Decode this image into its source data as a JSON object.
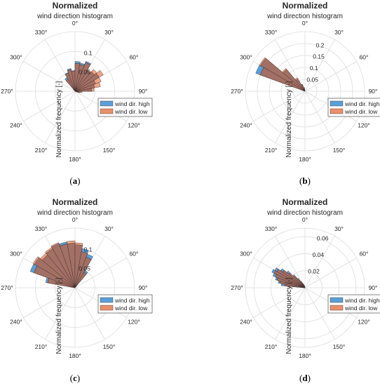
{
  "colors": {
    "high": "#5a9fd8",
    "low": "#e8906a",
    "overlap": "#a37065",
    "grid": "#dcdcdc",
    "edge": "#3a2a2a"
  },
  "legend": {
    "high": "wind dir. high",
    "low": "wind  dir. low"
  },
  "chart_data": [
    {
      "panel": "a",
      "type": "polar_histogram",
      "title": "Normalized",
      "subtitle": "wind direction histogram",
      "ylabel": "Normalized frequency [-]",
      "rlim": [
        0,
        0.15
      ],
      "rticks": [
        {
          "v": 0.05,
          "label": "0.05"
        },
        {
          "v": 0.1,
          "label": "0.1"
        }
      ],
      "angle_ticks": [
        "0°",
        "30°",
        "60°",
        "90°",
        "120°",
        "150°",
        "180°",
        "210°",
        "240°",
        "270°",
        "300°",
        "330°"
      ],
      "legend_position": "lower-right",
      "bin_width_deg": 10,
      "series": [
        {
          "name": "wind dir. high",
          "bins": [
            {
              "a": -35,
              "v": 0.04
            },
            {
              "a": -25,
              "v": 0.05
            },
            {
              "a": -15,
              "v": 0.058
            },
            {
              "a": -5,
              "v": 0.052
            },
            {
              "a": 5,
              "v": 0.075
            },
            {
              "a": 15,
              "v": 0.072
            },
            {
              "a": 25,
              "v": 0.08
            },
            {
              "a": 35,
              "v": 0.06
            },
            {
              "a": 45,
              "v": 0.064
            },
            {
              "a": 55,
              "v": 0.07
            },
            {
              "a": 65,
              "v": 0.055
            },
            {
              "a": 75,
              "v": 0.05
            },
            {
              "a": 85,
              "v": 0.042
            },
            {
              "a": 95,
              "v": 0.015
            },
            {
              "a": 105,
              "v": 0.01
            }
          ]
        },
        {
          "name": "wind  dir. low",
          "bins": [
            {
              "a": -35,
              "v": 0.035
            },
            {
              "a": -25,
              "v": 0.048
            },
            {
              "a": -15,
              "v": 0.055
            },
            {
              "a": -5,
              "v": 0.05
            },
            {
              "a": 5,
              "v": 0.07
            },
            {
              "a": 15,
              "v": 0.068
            },
            {
              "a": 25,
              "v": 0.077
            },
            {
              "a": 35,
              "v": 0.063
            },
            {
              "a": 45,
              "v": 0.072
            },
            {
              "a": 55,
              "v": 0.082
            },
            {
              "a": 65,
              "v": 0.07
            },
            {
              "a": 75,
              "v": 0.065
            },
            {
              "a": 85,
              "v": 0.048
            },
            {
              "a": 95,
              "v": 0.018
            },
            {
              "a": 105,
              "v": 0.012
            }
          ]
        }
      ],
      "caption": "a"
    },
    {
      "panel": "b",
      "type": "polar_histogram",
      "title": "Normalized",
      "subtitle": "wind direction histogram",
      "ylabel": "Normalized frequency [-]",
      "rlim": [
        0,
        0.25
      ],
      "rticks": [
        {
          "v": 0.05,
          "label": "0.05"
        },
        {
          "v": 0.1,
          "label": "0.1"
        },
        {
          "v": 0.15,
          "label": "0.15"
        },
        {
          "v": 0.2,
          "label": "0.2"
        }
      ],
      "angle_ticks": [
        "0°",
        "30°",
        "60°",
        "90°",
        "120°",
        "150°",
        "180°",
        "210°",
        "240°",
        "270°",
        "300°",
        "330°"
      ],
      "legend_position": "lower-right",
      "bin_width_deg": 10,
      "series": [
        {
          "name": "wind dir. high",
          "bins": [
            {
              "a": -65,
              "v": 0.22
            },
            {
              "a": -55,
              "v": 0.215
            },
            {
              "a": -45,
              "v": 0.12
            },
            {
              "a": -35,
              "v": 0.06
            },
            {
              "a": -25,
              "v": 0.03
            },
            {
              "a": -15,
              "v": 0.015
            }
          ]
        },
        {
          "name": "wind  dir. low",
          "bins": [
            {
              "a": -65,
              "v": 0.2
            },
            {
              "a": -55,
              "v": 0.22
            },
            {
              "a": -45,
              "v": 0.125
            },
            {
              "a": -35,
              "v": 0.065
            },
            {
              "a": -25,
              "v": 0.032
            },
            {
              "a": -15,
              "v": 0.016
            }
          ]
        }
      ],
      "caption": "b"
    },
    {
      "panel": "c",
      "type": "polar_histogram",
      "title": "Normalized",
      "subtitle": "wind direction histogram",
      "ylabel": "Normalized frequency [-]",
      "rlim": [
        0,
        0.15
      ],
      "rticks": [
        {
          "v": 0.05,
          "label": "0.05"
        },
        {
          "v": 0.1,
          "label": "0.1"
        }
      ],
      "angle_ticks": [
        "0°",
        "30°",
        "60°",
        "90°",
        "120°",
        "150°",
        "180°",
        "210°",
        "240°",
        "270°",
        "300°",
        "330°"
      ],
      "legend_position": "lower-right",
      "bin_width_deg": 10,
      "series": [
        {
          "name": "wind dir. high",
          "bins": [
            {
              "a": -75,
              "v": 0.075
            },
            {
              "a": -65,
              "v": 0.12
            },
            {
              "a": -55,
              "v": 0.118
            },
            {
              "a": -45,
              "v": 0.108
            },
            {
              "a": -35,
              "v": 0.113
            },
            {
              "a": -25,
              "v": 0.118
            },
            {
              "a": -15,
              "v": 0.117
            },
            {
              "a": -5,
              "v": 0.112
            },
            {
              "a": 5,
              "v": 0.108
            },
            {
              "a": 15,
              "v": 0.1
            },
            {
              "a": 25,
              "v": 0.09
            },
            {
              "a": 35,
              "v": 0.05
            }
          ]
        },
        {
          "name": "wind  dir. low",
          "bins": [
            {
              "a": -75,
              "v": 0.07
            },
            {
              "a": -65,
              "v": 0.11
            },
            {
              "a": -55,
              "v": 0.122
            },
            {
              "a": -45,
              "v": 0.114
            },
            {
              "a": -35,
              "v": 0.117
            },
            {
              "a": -25,
              "v": 0.121
            },
            {
              "a": -15,
              "v": 0.112
            },
            {
              "a": -5,
              "v": 0.118
            },
            {
              "a": 5,
              "v": 0.113
            },
            {
              "a": 15,
              "v": 0.092
            },
            {
              "a": 25,
              "v": 0.082
            },
            {
              "a": 35,
              "v": 0.045
            }
          ]
        }
      ],
      "caption": "c"
    },
    {
      "panel": "d",
      "type": "polar_histogram",
      "title": "Normalized",
      "subtitle": "wind direction histogram",
      "ylabel": "Normalized frequency [-]",
      "rlim": [
        0,
        0.07
      ],
      "rticks": [
        {
          "v": 0.02,
          "label": "0.02"
        },
        {
          "v": 0.04,
          "label": "0.04"
        },
        {
          "v": 0.06,
          "label": "0.06"
        }
      ],
      "angle_ticks": [
        "0°",
        "30°",
        "60°",
        "90°",
        "120°",
        "150°",
        "180°",
        "210°",
        "240°",
        "270°",
        "300°",
        "330°"
      ],
      "legend_position": "lower-right",
      "bin_width_deg": 5,
      "series": [
        {
          "name": "wind dir. high",
          "bins": [
            {
              "a": -82.5,
              "v": 0.028
            },
            {
              "a": -77.5,
              "v": 0.032
            },
            {
              "a": -72.5,
              "v": 0.036
            },
            {
              "a": -67.5,
              "v": 0.04
            },
            {
              "a": -62.5,
              "v": 0.043
            },
            {
              "a": -57.5,
              "v": 0.041
            },
            {
              "a": -52.5,
              "v": 0.035
            },
            {
              "a": -47.5,
              "v": 0.028
            },
            {
              "a": -42.5,
              "v": 0.02
            },
            {
              "a": -37.5,
              "v": 0.014
            },
            {
              "a": -32.5,
              "v": 0.009
            },
            {
              "a": -27.5,
              "v": 0.006
            },
            {
              "a": -22.5,
              "v": 0.004
            },
            {
              "a": -17.5,
              "v": 0.003
            }
          ]
        },
        {
          "name": "wind  dir. low",
          "bins": [
            {
              "a": -82.5,
              "v": 0.024
            },
            {
              "a": -77.5,
              "v": 0.03
            },
            {
              "a": -72.5,
              "v": 0.034
            },
            {
              "a": -67.5,
              "v": 0.037
            },
            {
              "a": -62.5,
              "v": 0.04
            },
            {
              "a": -57.5,
              "v": 0.038
            },
            {
              "a": -52.5,
              "v": 0.032
            },
            {
              "a": -47.5,
              "v": 0.025
            },
            {
              "a": -42.5,
              "v": 0.018
            },
            {
              "a": -37.5,
              "v": 0.012
            },
            {
              "a": -32.5,
              "v": 0.008
            },
            {
              "a": -27.5,
              "v": 0.005
            },
            {
              "a": -22.5,
              "v": 0.0035
            },
            {
              "a": -17.5,
              "v": 0.0025
            }
          ]
        }
      ],
      "caption": "d"
    }
  ]
}
